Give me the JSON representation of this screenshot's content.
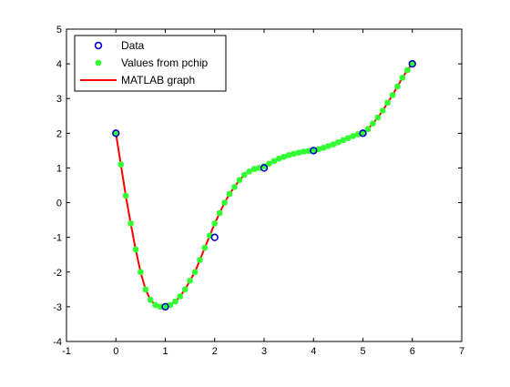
{
  "chart_data": {
    "type": "line",
    "title": "",
    "xlabel": "",
    "ylabel": "",
    "xlim": [
      -1,
      7
    ],
    "ylim": [
      -4,
      5
    ],
    "x_ticks": [
      -1,
      0,
      1,
      2,
      3,
      4,
      5,
      6,
      7
    ],
    "y_ticks": [
      -4,
      -3,
      -2,
      -1,
      0,
      1,
      2,
      3,
      4,
      5
    ],
    "grid": false,
    "legend_position": "top-left",
    "series": [
      {
        "name": "Data",
        "marker": "circle",
        "color": "#0000cc",
        "x": [
          0,
          1,
          2,
          3,
          4,
          5,
          6
        ],
        "y": [
          2,
          -3,
          -1,
          1,
          1.5,
          2,
          4
        ]
      },
      {
        "name": "Values from pchip",
        "marker": "asterisk",
        "color": "#33ff33",
        "x": [
          0,
          0.1,
          0.2,
          0.3,
          0.4,
          0.5,
          0.6,
          0.7,
          0.8,
          0.9,
          1.0,
          1.1,
          1.2,
          1.3,
          1.4,
          1.5,
          1.6,
          1.7,
          1.8,
          1.9,
          2.0,
          2.1,
          2.2,
          2.3,
          2.4,
          2.5,
          2.6,
          2.7,
          2.8,
          2.9,
          3.0,
          3.1,
          3.2,
          3.3,
          3.4,
          3.5,
          3.6,
          3.7,
          3.8,
          3.9,
          4.0,
          4.1,
          4.2,
          4.3,
          4.4,
          4.5,
          4.6,
          4.7,
          4.8,
          4.9,
          5.0,
          5.1,
          5.2,
          5.3,
          5.4,
          5.5,
          5.6,
          5.7,
          5.8,
          5.9,
          6.0
        ],
        "y": [
          2.0,
          1.1,
          0.2,
          -0.6,
          -1.35,
          -2.0,
          -2.5,
          -2.8,
          -2.95,
          -3.0,
          -3.0,
          -2.95,
          -2.85,
          -2.7,
          -2.5,
          -2.25,
          -2.0,
          -1.65,
          -1.3,
          -0.95,
          -0.6,
          -0.3,
          0.0,
          0.25,
          0.45,
          0.65,
          0.8,
          0.9,
          0.97,
          1.0,
          1.05,
          1.12,
          1.2,
          1.27,
          1.32,
          1.37,
          1.41,
          1.44,
          1.47,
          1.49,
          1.5,
          1.54,
          1.58,
          1.63,
          1.68,
          1.74,
          1.8,
          1.86,
          1.92,
          1.97,
          2.0,
          2.12,
          2.28,
          2.45,
          2.65,
          2.88,
          3.1,
          3.35,
          3.6,
          3.82,
          4.0
        ]
      },
      {
        "name": "MATLAB graph",
        "marker": "line",
        "color": "#ff0000",
        "x": [
          0,
          0.1,
          0.2,
          0.3,
          0.4,
          0.5,
          0.6,
          0.7,
          0.8,
          0.9,
          1.0,
          1.1,
          1.2,
          1.3,
          1.4,
          1.5,
          1.6,
          1.7,
          1.8,
          1.9,
          2.0,
          2.1,
          2.2,
          2.3,
          2.4,
          2.5,
          2.6,
          2.7,
          2.8,
          2.9,
          3.0,
          3.1,
          3.2,
          3.3,
          3.4,
          3.5,
          3.6,
          3.7,
          3.8,
          3.9,
          4.0,
          4.1,
          4.2,
          4.3,
          4.4,
          4.5,
          4.6,
          4.7,
          4.8,
          4.9,
          5.0,
          5.1,
          5.2,
          5.3,
          5.4,
          5.5,
          5.6,
          5.7,
          5.8,
          5.9,
          6.0
        ],
        "y": [
          2.0,
          1.1,
          0.2,
          -0.6,
          -1.35,
          -2.0,
          -2.5,
          -2.8,
          -2.95,
          -3.0,
          -3.0,
          -2.95,
          -2.85,
          -2.7,
          -2.5,
          -2.25,
          -2.0,
          -1.65,
          -1.3,
          -0.95,
          -0.6,
          -0.3,
          0.0,
          0.25,
          0.45,
          0.65,
          0.8,
          0.9,
          0.97,
          1.0,
          1.05,
          1.12,
          1.2,
          1.27,
          1.32,
          1.37,
          1.41,
          1.44,
          1.47,
          1.49,
          1.5,
          1.54,
          1.58,
          1.63,
          1.68,
          1.74,
          1.8,
          1.86,
          1.92,
          1.97,
          2.0,
          2.12,
          2.28,
          2.45,
          2.65,
          2.88,
          3.1,
          3.35,
          3.6,
          3.82,
          4.0
        ]
      }
    ]
  }
}
